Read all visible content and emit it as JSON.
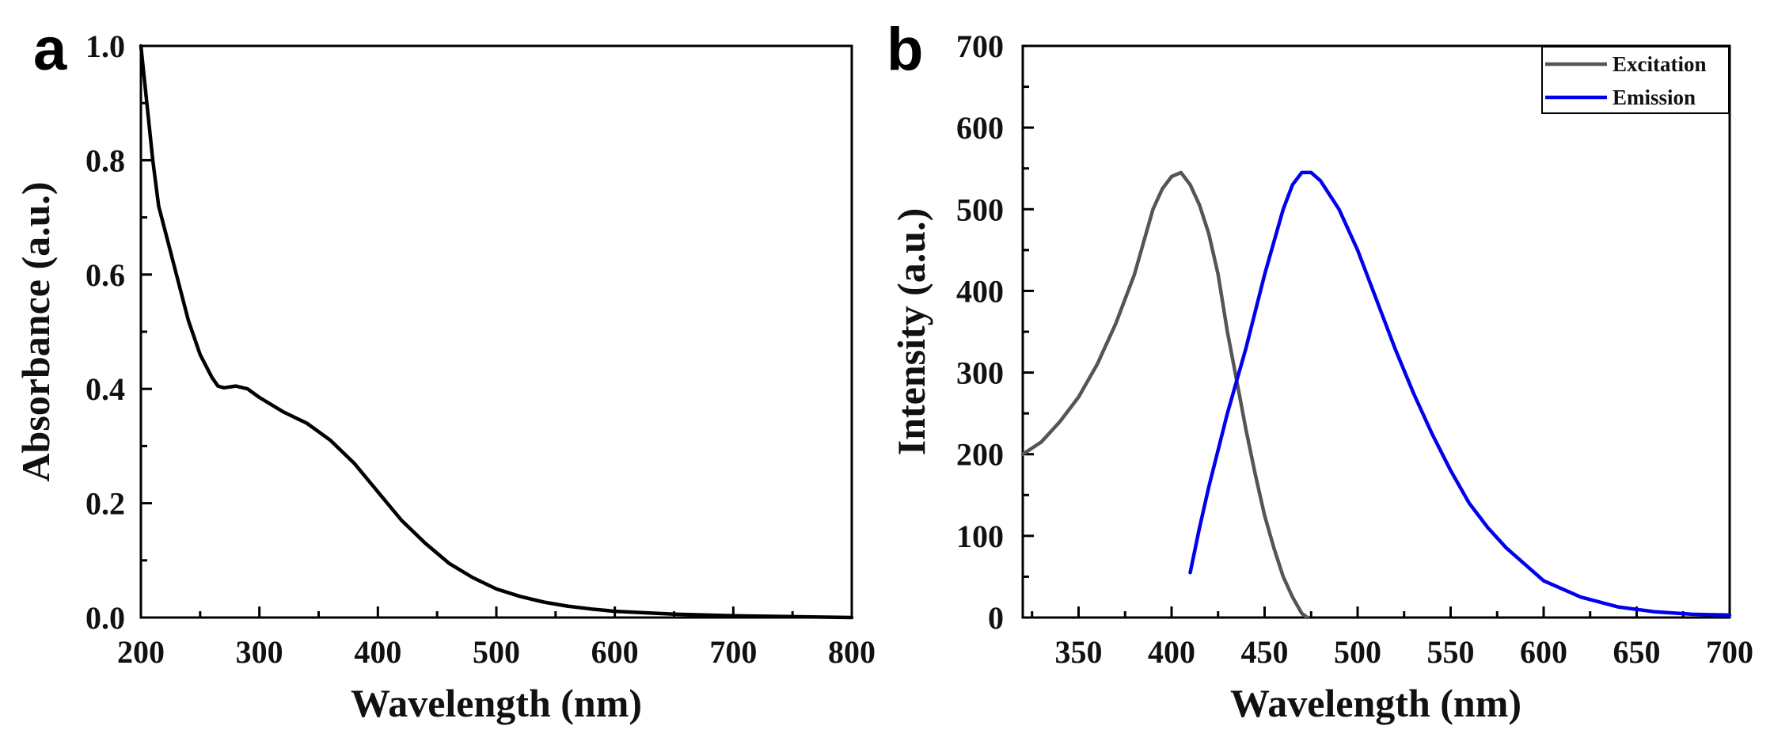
{
  "chart_data": [
    {
      "type": "line",
      "panel_label": "a",
      "title": "",
      "xlabel": "Wavelength (nm)",
      "ylabel": "Absorbance (a.u.)",
      "xlim": [
        200,
        800
      ],
      "ylim": [
        0.0,
        1.0
      ],
      "xticks": [
        200,
        300,
        400,
        500,
        600,
        700,
        800
      ],
      "xtick_labels": [
        "200",
        "300",
        "400",
        "500",
        "600",
        "700",
        "800"
      ],
      "yticks": [
        0.0,
        0.2,
        0.4,
        0.6,
        0.8,
        1.0
      ],
      "ytick_labels": [
        "0.0",
        "0.2",
        "0.4",
        "0.6",
        "0.8",
        "1.0"
      ],
      "grid": false,
      "series": [
        {
          "name": "Absorbance",
          "color": "#000000",
          "x": [
            200,
            205,
            210,
            215,
            220,
            230,
            240,
            250,
            260,
            265,
            270,
            280,
            290,
            300,
            320,
            340,
            360,
            380,
            400,
            420,
            440,
            460,
            480,
            500,
            520,
            540,
            560,
            580,
            600,
            650,
            700,
            750,
            800
          ],
          "y": [
            1.0,
            0.9,
            0.8,
            0.72,
            0.68,
            0.6,
            0.52,
            0.46,
            0.42,
            0.405,
            0.402,
            0.405,
            0.4,
            0.385,
            0.36,
            0.34,
            0.31,
            0.27,
            0.22,
            0.17,
            0.13,
            0.095,
            0.07,
            0.05,
            0.037,
            0.027,
            0.02,
            0.015,
            0.011,
            0.006,
            0.003,
            0.0015,
            0.0
          ]
        }
      ]
    },
    {
      "type": "line",
      "panel_label": "b",
      "title": "",
      "xlabel": "Wavelength (nm)",
      "ylabel": "Intensity (a.u.)",
      "xlim": [
        320,
        700
      ],
      "ylim": [
        0,
        700
      ],
      "xticks": [
        350,
        400,
        450,
        500,
        550,
        600,
        650,
        700
      ],
      "xtick_labels": [
        "350",
        "400",
        "450",
        "500",
        "550",
        "600",
        "650",
        "700"
      ],
      "yticks": [
        0,
        100,
        200,
        300,
        400,
        500,
        600,
        700
      ],
      "ytick_labels": [
        "0",
        "100",
        "200",
        "300",
        "400",
        "500",
        "600",
        "700"
      ],
      "grid": false,
      "legend_position": "top-right",
      "series": [
        {
          "name": "Excitation",
          "color": "#555555",
          "x": [
            320,
            330,
            340,
            350,
            360,
            370,
            380,
            390,
            395,
            400,
            405,
            410,
            415,
            420,
            425,
            430,
            435,
            440,
            445,
            450,
            455,
            460,
            465,
            470,
            473
          ],
          "y": [
            200,
            215,
            240,
            270,
            310,
            360,
            420,
            500,
            525,
            540,
            545,
            530,
            505,
            470,
            420,
            350,
            290,
            230,
            175,
            125,
            85,
            50,
            25,
            5,
            0
          ]
        },
        {
          "name": "Emission",
          "color": "#0000ee",
          "x": [
            410,
            415,
            420,
            430,
            440,
            450,
            460,
            465,
            470,
            475,
            480,
            490,
            500,
            510,
            520,
            530,
            540,
            550,
            560,
            570,
            580,
            600,
            620,
            640,
            660,
            680,
            700
          ],
          "y": [
            55,
            110,
            160,
            250,
            330,
            420,
            500,
            530,
            545,
            545,
            535,
            500,
            450,
            390,
            330,
            275,
            225,
            180,
            140,
            110,
            85,
            45,
            25,
            13,
            7,
            4,
            3
          ]
        }
      ]
    }
  ]
}
